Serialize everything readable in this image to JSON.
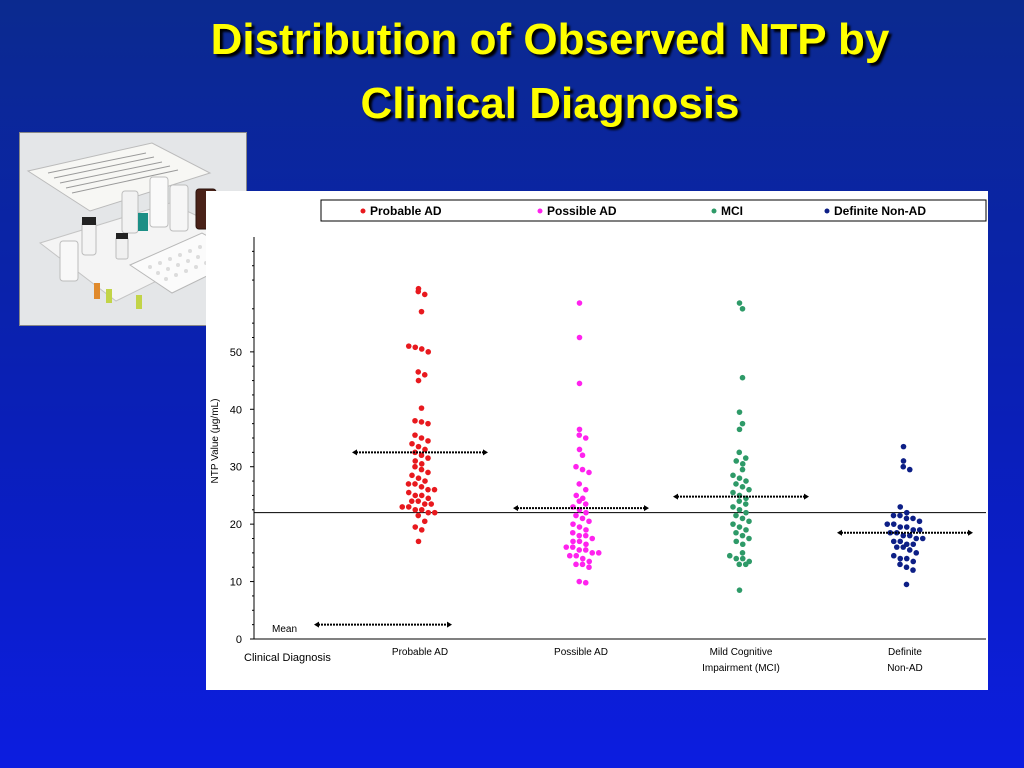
{
  "slide": {
    "title_line1": "Distribution of Observed NTP by",
    "title_line2": "Clinical Diagnosis"
  },
  "colors": {
    "background": "#0a1fb8",
    "title": "#ffff00",
    "probable_ad": "#e8191e",
    "possible_ad": "#ff22ee",
    "mci": "#2e9a68",
    "definite_non_ad": "#0d1f86"
  },
  "photo": {
    "icon": "assay-kit-photo"
  },
  "chart_data": {
    "type": "scatter",
    "ylabel": "NTP Value (μg/mL)",
    "xlabel": "Clinical Diagnosis",
    "ylim": [
      0,
      70
    ],
    "yticks": [
      0,
      10,
      20,
      30,
      40,
      50
    ],
    "reference_line": 22,
    "mean_label": "Mean",
    "mean_legend_value": 2.5,
    "legend_position": "top",
    "categories": [
      {
        "key": "probable_ad",
        "legend": "Probable AD",
        "label_lines": [
          "Probable AD"
        ]
      },
      {
        "key": "possible_ad",
        "legend": "Possible AD",
        "label_lines": [
          "Possible AD"
        ]
      },
      {
        "key": "mci",
        "legend": "MCI",
        "label_lines": [
          "Mild Cognitive",
          "Impairment (MCI)"
        ]
      },
      {
        "key": "definite_non_ad",
        "legend": "Definite Non-AD",
        "label_lines": [
          "Definite",
          "Non-AD"
        ]
      }
    ],
    "series": [
      {
        "name": "Probable AD",
        "color": "#e8191e",
        "mean": 32.5,
        "values": [
          61.0,
          60.5,
          60.0,
          57.0,
          51.0,
          50.8,
          50.5,
          50.0,
          46.5,
          46.0,
          45.0,
          40.2,
          38.0,
          37.8,
          37.5,
          35.5,
          35.0,
          34.5,
          34.0,
          33.5,
          33.0,
          32.5,
          32.0,
          31.5,
          31.0,
          30.5,
          30.0,
          29.5,
          29.0,
          28.5,
          28.0,
          27.5,
          27.0,
          27.0,
          26.5,
          26.0,
          26.0,
          25.5,
          25.0,
          25.0,
          24.5,
          24.0,
          24.0,
          23.5,
          23.5,
          23.0,
          23.0,
          22.5,
          22.5,
          22.0,
          22.0,
          21.5,
          20.5,
          19.5,
          19.0,
          17.0
        ]
      },
      {
        "name": "Possible AD",
        "color": "#ff22ee",
        "mean": 22.8,
        "values": [
          58.5,
          52.5,
          44.5,
          36.5,
          35.5,
          35.0,
          33.0,
          32.0,
          30.0,
          29.5,
          29.0,
          27.0,
          26.0,
          25.0,
          24.5,
          24.0,
          23.5,
          23.0,
          22.5,
          22.0,
          21.5,
          21.0,
          20.5,
          20.0,
          19.5,
          19.0,
          18.5,
          18.0,
          18.0,
          17.5,
          17.0,
          17.0,
          16.5,
          16.0,
          16.0,
          15.5,
          15.5,
          15.0,
          15.0,
          14.5,
          14.5,
          14.0,
          13.5,
          13.0,
          13.0,
          12.5,
          10.0,
          9.8
        ]
      },
      {
        "name": "MCI",
        "color": "#2e9a68",
        "mean": 24.8,
        "values": [
          58.5,
          57.5,
          45.5,
          39.5,
          37.5,
          36.5,
          32.5,
          31.5,
          31.0,
          30.5,
          29.5,
          28.5,
          28.0,
          27.5,
          27.0,
          26.5,
          26.0,
          25.5,
          25.0,
          24.5,
          24.0,
          23.5,
          23.0,
          22.5,
          22.0,
          21.5,
          21.0,
          20.5,
          20.0,
          19.5,
          19.0,
          18.5,
          18.0,
          17.5,
          17.0,
          16.5,
          15.0,
          14.5,
          14.0,
          14.0,
          13.5,
          13.0,
          13.0,
          8.5
        ]
      },
      {
        "name": "Definite Non-AD",
        "color": "#0d1f86",
        "mean": 18.5,
        "values": [
          33.5,
          31.0,
          30.0,
          29.5,
          23.0,
          22.0,
          21.5,
          21.5,
          21.0,
          21.0,
          20.5,
          20.0,
          20.0,
          19.5,
          19.5,
          19.0,
          19.0,
          18.5,
          18.5,
          18.0,
          18.0,
          17.5,
          17.5,
          17.0,
          17.0,
          16.5,
          16.5,
          16.0,
          16.0,
          15.5,
          15.0,
          14.5,
          14.0,
          14.0,
          13.5,
          13.0,
          12.5,
          12.0,
          9.5
        ]
      }
    ]
  }
}
